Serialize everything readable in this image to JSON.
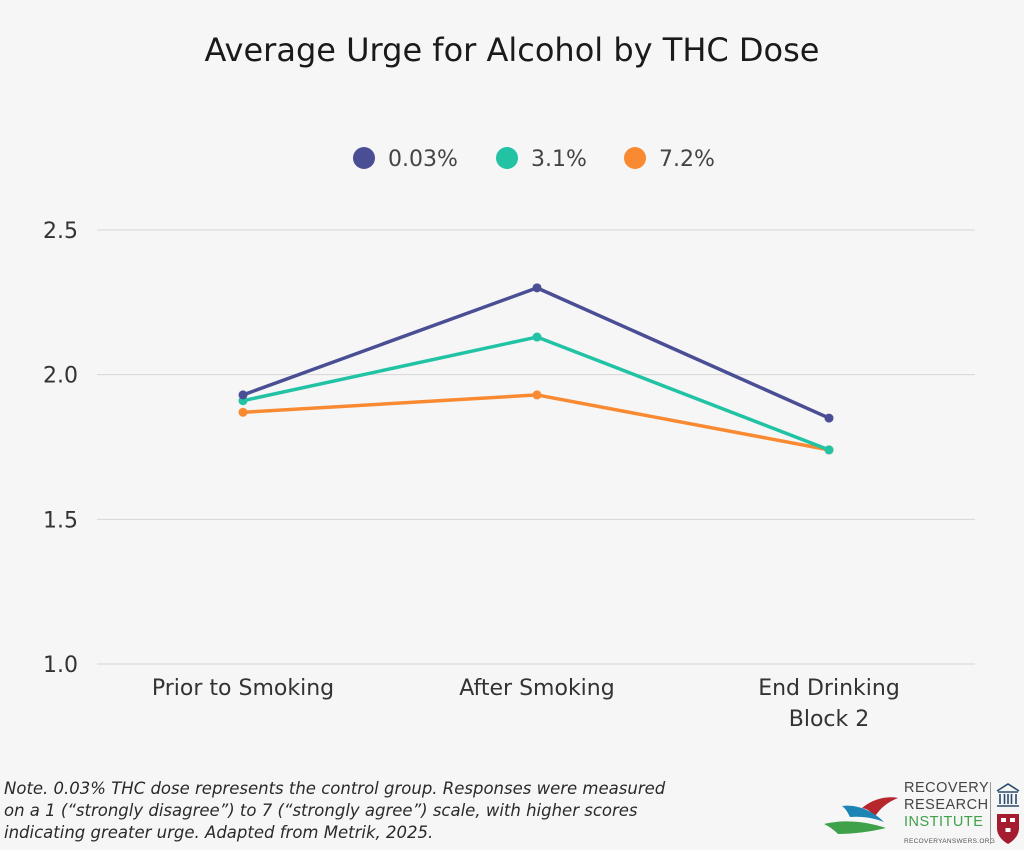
{
  "chart_data": {
    "type": "line",
    "title": "Average Urge for Alcohol by THC Dose",
    "categories": [
      "Prior to Smoking",
      "After Smoking",
      "End Drinking Block 2"
    ],
    "category_lines": [
      [
        "Prior to Smoking"
      ],
      [
        "After Smoking"
      ],
      [
        "End Drinking",
        "Block 2"
      ]
    ],
    "series": [
      {
        "name": "0.03%",
        "color": "#4a4e95",
        "values": [
          1.93,
          2.3,
          1.85
        ]
      },
      {
        "name": "3.1%",
        "color": "#22c3a4",
        "values": [
          1.91,
          2.13,
          1.74
        ]
      },
      {
        "name": "7.2%",
        "color": "#f98a32",
        "values": [
          1.87,
          1.93,
          1.74
        ]
      }
    ],
    "ylim": [
      1.0,
      2.5
    ],
    "yticks": [
      1.0,
      1.5,
      2.0,
      2.5
    ],
    "ytick_labels": [
      "1.0",
      "1.5",
      "2.0",
      "2.5"
    ],
    "xlabel": "",
    "ylabel": "",
    "grid": true,
    "legend_position": "top-center"
  },
  "note": {
    "lines": [
      "Note. 0.03% THC dose represents the control group. Responses were measured",
      "on a 1 (“strongly disagree”) to 7 (“strongly agree”) scale, with higher scores",
      "indicating greater urge. Adapted from Metrik, 2025."
    ]
  },
  "logo": {
    "line1": "RECOVERY",
    "line2": "RESEARCH",
    "line3": "INSTITUTE",
    "url": "RECOVERYANSWERS.ORG",
    "colors": {
      "red": "#b5272d",
      "blue": "#1e84b4",
      "green": "#3fa14a",
      "navy": "#2b4a6f"
    }
  }
}
